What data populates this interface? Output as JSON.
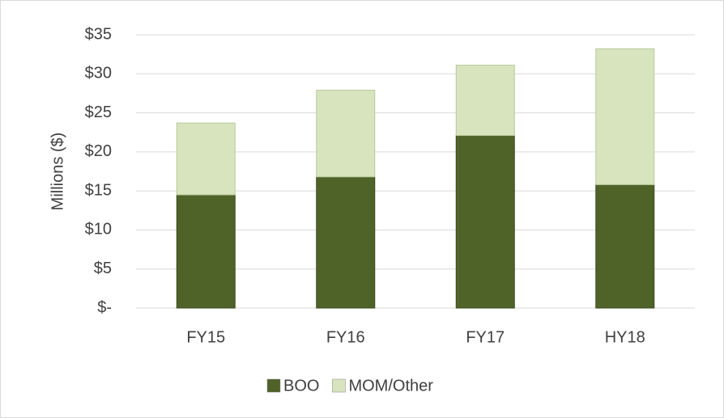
{
  "chart_data": {
    "type": "stacked_bar",
    "y_label": "Millions ($)",
    "categories": [
      "FY15",
      "FY16",
      "FY17",
      "HY18"
    ],
    "series": [
      {
        "name": "BOO",
        "color": "#4f6228",
        "values": [
          14.5,
          16.8,
          22.1,
          15.8
        ]
      },
      {
        "name": "MOM/Other",
        "color": "#d7e4bd",
        "values": [
          9.2,
          11.1,
          9.0,
          17.4
        ]
      }
    ],
    "ylim": [
      0,
      35
    ],
    "yticks": [
      {
        "value": 0,
        "label": "$-"
      },
      {
        "value": 5,
        "label": "$5"
      },
      {
        "value": 10,
        "label": "$10"
      },
      {
        "value": 15,
        "label": "$15"
      },
      {
        "value": 20,
        "label": "$20"
      },
      {
        "value": 25,
        "label": "$25"
      },
      {
        "value": 30,
        "label": "$30"
      },
      {
        "value": 35,
        "label": "$35"
      }
    ],
    "grid": true,
    "legend": "bottom"
  }
}
